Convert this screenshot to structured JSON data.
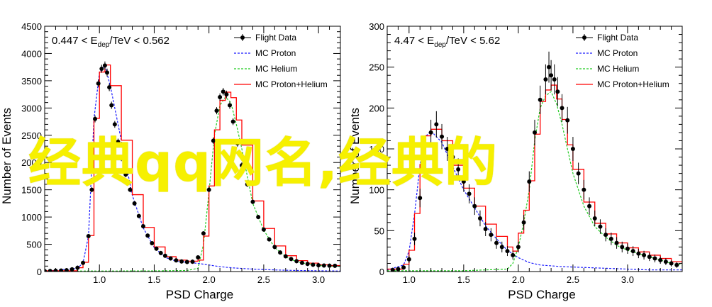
{
  "overlay_text": "经典qq网名,经典的",
  "colors": {
    "flight": "#000000",
    "proton": "#1a1aff",
    "helium": "#22cc22",
    "sum": "#ff0000",
    "overlay": "#f6f000"
  },
  "chart_data": [
    {
      "type": "line",
      "title": "",
      "annotation": "0.447 < E_dep/TeV < 0.562",
      "xlabel": "PSD Charge",
      "ylabel": "Number of Events",
      "xlim": [
        0.5,
        3.2
      ],
      "ylim": [
        0,
        4500
      ],
      "xticks": [
        "1.0",
        "1.5",
        "2.0",
        "2.5",
        "3.0"
      ],
      "yticks": [
        "0",
        "500",
        "1000",
        "1500",
        "2000",
        "2500",
        "3000",
        "3500",
        "4000",
        "4500"
      ],
      "legend_position": "top-right",
      "legend": [
        "Flight Data",
        "MC Proton",
        "MC Helium",
        "MC Proton+Helium"
      ],
      "series": [
        {
          "name": "Flight Data",
          "style": "points",
          "x": [
            0.5,
            0.55,
            0.6,
            0.65,
            0.7,
            0.75,
            0.8,
            0.85,
            0.9,
            0.93,
            0.96,
            0.99,
            1.02,
            1.05,
            1.07,
            1.09,
            1.11,
            1.14,
            1.17,
            1.2,
            1.24,
            1.28,
            1.32,
            1.36,
            1.4,
            1.44,
            1.48,
            1.52,
            1.56,
            1.6,
            1.65,
            1.7,
            1.75,
            1.8,
            1.85,
            1.9,
            1.95,
            2.0,
            2.04,
            2.07,
            2.1,
            2.13,
            2.16,
            2.19,
            2.22,
            2.26,
            2.3,
            2.35,
            2.4,
            2.45,
            2.5,
            2.55,
            2.6,
            2.65,
            2.7,
            2.75,
            2.8,
            2.85,
            2.9,
            2.95,
            3.0,
            3.05,
            3.1,
            3.15
          ],
          "y": [
            8,
            10,
            14,
            18,
            25,
            40,
            70,
            160,
            650,
            1500,
            2800,
            3450,
            3720,
            3780,
            3650,
            3380,
            3050,
            2700,
            2380,
            2080,
            1780,
            1500,
            1250,
            1020,
            830,
            660,
            520,
            420,
            340,
            290,
            240,
            205,
            185,
            175,
            180,
            260,
            700,
            1500,
            2400,
            2950,
            3200,
            3300,
            3250,
            3050,
            2750,
            2350,
            1950,
            1600,
            1280,
            1000,
            770,
            590,
            450,
            350,
            280,
            230,
            190,
            160,
            140,
            125,
            115,
            110,
            108,
            105
          ]
        },
        {
          "name": "MC Proton",
          "style": "dashed",
          "x": [
            0.5,
            0.8,
            0.85,
            0.9,
            0.95,
            1.0,
            1.05,
            1.1,
            1.2,
            1.3,
            1.4,
            1.5,
            1.6,
            1.7,
            1.8,
            1.9,
            2.0,
            2.1,
            2.2,
            2.4,
            2.6,
            2.8,
            3.0,
            3.2
          ],
          "y": [
            5,
            60,
            160,
            650,
            2800,
            3650,
            3780,
            3400,
            2400,
            1400,
            800,
            440,
            260,
            190,
            170,
            150,
            120,
            90,
            70,
            45,
            30,
            20,
            14,
            10
          ]
        },
        {
          "name": "MC Helium",
          "style": "dashed",
          "x": [
            0.5,
            1.0,
            1.5,
            1.8,
            1.9,
            1.95,
            2.0,
            2.05,
            2.1,
            2.15,
            2.2,
            2.25,
            2.3,
            2.4,
            2.5,
            2.6,
            2.7,
            2.8,
            2.9,
            3.0,
            3.1,
            3.2
          ],
          "y": [
            10,
            10,
            12,
            20,
            60,
            500,
            1450,
            2500,
            3050,
            3200,
            3100,
            2700,
            2250,
            1250,
            760,
            440,
            270,
            180,
            140,
            110,
            100,
            95
          ]
        },
        {
          "name": "MC Proton+Helium",
          "style": "step",
          "x": [
            0.5,
            0.8,
            0.85,
            0.9,
            0.95,
            1.0,
            1.05,
            1.1,
            1.2,
            1.3,
            1.4,
            1.5,
            1.6,
            1.7,
            1.8,
            1.9,
            1.95,
            2.0,
            2.05,
            2.1,
            2.15,
            2.2,
            2.25,
            2.3,
            2.4,
            2.5,
            2.6,
            2.7,
            2.8,
            2.9,
            3.0,
            3.1,
            3.2
          ],
          "y": [
            15,
            70,
            170,
            660,
            2810,
            3660,
            3790,
            3410,
            2410,
            1410,
            810,
            452,
            272,
            210,
            190,
            210,
            650,
            1570,
            2600,
            3140,
            3290,
            3190,
            2780,
            2320,
            1295,
            790,
            470,
            290,
            200,
            154,
            124,
            110,
            105
          ]
        }
      ]
    },
    {
      "type": "line",
      "title": "",
      "annotation": "4.47 < E_dep/TeV < 5.62",
      "xlabel": "PSD Charge",
      "ylabel": "Number of Events",
      "xlim": [
        0.8,
        3.5
      ],
      "ylim": [
        0,
        300
      ],
      "xticks": [
        "1.0",
        "1.5",
        "2.0",
        "2.5",
        "3.0"
      ],
      "yticks": [
        "0",
        "50",
        "100",
        "150",
        "200",
        "250",
        "300"
      ],
      "legend_position": "top-right",
      "legend": [
        "Flight Data",
        "MC Proton",
        "MC Helium",
        "MC Proton+Helium"
      ],
      "series": [
        {
          "name": "Flight Data",
          "style": "points",
          "x": [
            0.85,
            0.9,
            0.95,
            1.0,
            1.05,
            1.1,
            1.15,
            1.2,
            1.25,
            1.3,
            1.35,
            1.4,
            1.45,
            1.5,
            1.55,
            1.6,
            1.65,
            1.7,
            1.75,
            1.8,
            1.85,
            1.9,
            1.95,
            2.0,
            2.05,
            2.1,
            2.15,
            2.2,
            2.25,
            2.28,
            2.3,
            2.33,
            2.36,
            2.4,
            2.45,
            2.5,
            2.55,
            2.6,
            2.65,
            2.7,
            2.75,
            2.8,
            2.85,
            2.9,
            2.95,
            3.0,
            3.05,
            3.1,
            3.15,
            3.2,
            3.25,
            3.3,
            3.35,
            3.4,
            3.45
          ],
          "y": [
            2,
            3,
            5,
            15,
            40,
            90,
            140,
            170,
            180,
            165,
            150,
            140,
            125,
            110,
            95,
            80,
            65,
            52,
            45,
            35,
            30,
            25,
            20,
            30,
            60,
            110,
            170,
            210,
            235,
            250,
            240,
            235,
            220,
            200,
            185,
            150,
            120,
            100,
            80,
            65,
            55,
            45,
            40,
            35,
            30,
            28,
            25,
            22,
            20,
            18,
            16,
            14,
            12,
            10,
            8
          ]
        },
        {
          "name": "MC Proton",
          "style": "dashed",
          "x": [
            0.8,
            0.95,
            1.0,
            1.05,
            1.1,
            1.15,
            1.2,
            1.3,
            1.4,
            1.5,
            1.6,
            1.7,
            1.8,
            1.9,
            2.0,
            2.1,
            2.2,
            2.4,
            2.6,
            2.8,
            3.0,
            3.2,
            3.5
          ],
          "y": [
            2,
            8,
            25,
            70,
            130,
            165,
            172,
            158,
            128,
            100,
            78,
            56,
            40,
            26,
            17,
            11,
            8,
            6,
            5,
            4,
            3,
            2,
            2
          ]
        },
        {
          "name": "MC Helium",
          "style": "dashed",
          "x": [
            0.8,
            1.5,
            1.9,
            1.95,
            2.0,
            2.05,
            2.1,
            2.15,
            2.2,
            2.25,
            2.3,
            2.35,
            2.4,
            2.45,
            2.5,
            2.6,
            2.7,
            2.8,
            2.9,
            3.0,
            3.1,
            3.2,
            3.3,
            3.4,
            3.5
          ],
          "y": [
            1,
            1,
            3,
            10,
            30,
            60,
            100,
            160,
            200,
            215,
            220,
            205,
            180,
            150,
            120,
            80,
            55,
            42,
            32,
            26,
            22,
            18,
            14,
            10,
            8
          ]
        },
        {
          "name": "MC Proton+Helium",
          "style": "step",
          "x": [
            0.8,
            0.95,
            1.0,
            1.05,
            1.1,
            1.15,
            1.2,
            1.3,
            1.4,
            1.5,
            1.6,
            1.7,
            1.8,
            1.9,
            1.95,
            2.0,
            2.05,
            2.1,
            2.15,
            2.2,
            2.25,
            2.3,
            2.35,
            2.4,
            2.45,
            2.5,
            2.6,
            2.7,
            2.8,
            2.9,
            3.0,
            3.1,
            3.2,
            3.3,
            3.4,
            3.5
          ],
          "y": [
            3,
            9,
            26,
            71,
            131,
            166,
            174,
            160,
            130,
            102,
            80,
            58,
            43,
            30,
            25,
            47,
            75,
            111,
            168,
            208,
            222,
            228,
            211,
            186,
            155,
            125,
            85,
            59,
            46,
            35,
            29,
            24,
            20,
            16,
            12,
            10
          ]
        }
      ]
    }
  ]
}
